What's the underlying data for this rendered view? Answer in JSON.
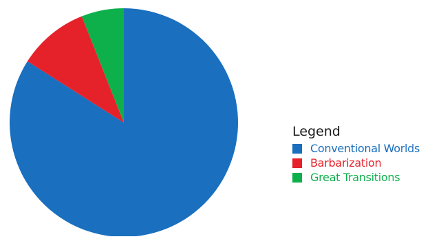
{
  "chart_data": {
    "type": "pie",
    "title": "",
    "slices": [
      {
        "label": "Conventional Worlds",
        "value": 84,
        "color": "#1a6fbf"
      },
      {
        "label": "Barbarization",
        "value": 10,
        "color": "#e5222a"
      },
      {
        "label": "Great Transitions",
        "value": 6,
        "color": "#0db04b"
      }
    ],
    "start": "top (12 o'clock), clockwise",
    "legend_title": "Legend",
    "legend_position": "right"
  },
  "legend": {
    "title": "Legend",
    "items": [
      {
        "label": "Conventional Worlds",
        "color": "#1a6fbf"
      },
      {
        "label": "Barbarization",
        "color": "#e5222a"
      },
      {
        "label": "Great Transitions",
        "color": "#0db04b"
      }
    ]
  }
}
